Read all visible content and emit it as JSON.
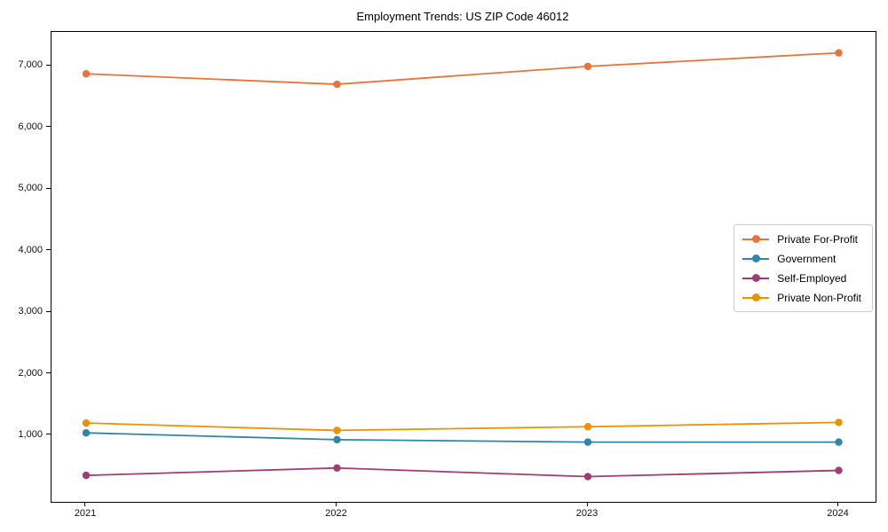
{
  "title": "Employment Trends: US ZIP Code 46012",
  "chart_data": {
    "type": "line",
    "x": [
      "2021",
      "2022",
      "2023",
      "2024"
    ],
    "series": [
      {
        "name": "Private For-Profit",
        "color": "#E8743B",
        "values": [
          6870,
          6700,
          6990,
          7210
        ]
      },
      {
        "name": "Government",
        "color": "#2E86AB",
        "values": [
          1040,
          930,
          890,
          890
        ]
      },
      {
        "name": "Self-Employed",
        "color": "#A23B72",
        "values": [
          350,
          470,
          330,
          430
        ]
      },
      {
        "name": "Private Non-Profit",
        "color": "#F18F01",
        "values": [
          1200,
          1080,
          1140,
          1210
        ]
      }
    ],
    "yticks": [
      1000,
      2000,
      3000,
      4000,
      5000,
      6000,
      7000
    ],
    "ytick_labels": [
      "1,000",
      "2,000",
      "3,000",
      "4,000",
      "5,000",
      "6,000",
      "7,000"
    ],
    "ylim": [
      -80,
      7550
    ],
    "xlabel": "",
    "ylabel": "",
    "grid": false,
    "marker": "circle",
    "legend_position": "right"
  }
}
